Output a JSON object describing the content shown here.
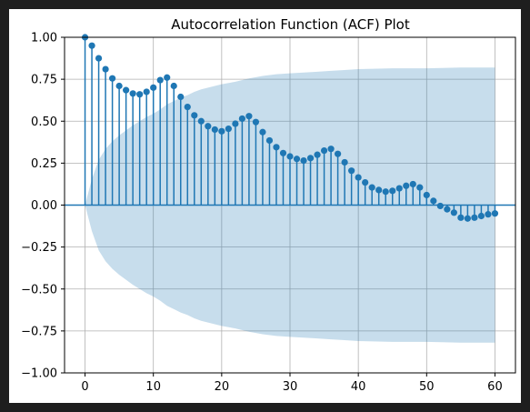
{
  "chart_data": {
    "type": "stem",
    "title": "Autocorrelation Function (ACF) Plot",
    "xlabel": "",
    "ylabel": "",
    "xlim": [
      -3,
      63
    ],
    "ylim": [
      -1.0,
      1.0
    ],
    "x_ticks": [
      0,
      10,
      20,
      30,
      40,
      50,
      60
    ],
    "y_ticks": [
      -1.0,
      -0.75,
      -0.5,
      -0.25,
      0.0,
      0.25,
      0.5,
      0.75,
      1.0
    ],
    "x_tick_labels": [
      "0",
      "10",
      "20",
      "30",
      "40",
      "50",
      "60"
    ],
    "y_tick_labels": [
      "−1.00",
      "−0.75",
      "−0.50",
      "−0.25",
      "0.00",
      "0.25",
      "0.50",
      "0.75",
      "1.00"
    ],
    "grid": true,
    "colors": {
      "stem": "#1f77b4",
      "marker": "#1f77b4",
      "band": "#1f77b4",
      "band_opacity": 0.25,
      "baseline": "#1f77b4",
      "grid": "#b0b0b0"
    },
    "series": [
      {
        "lags": [
          0,
          1,
          2,
          3,
          4,
          5,
          6,
          7,
          8,
          9,
          10,
          11,
          12,
          13,
          14,
          15,
          16,
          17,
          18,
          19,
          20,
          21,
          22,
          23,
          24,
          25,
          26,
          27,
          28,
          29,
          30,
          31,
          32,
          33,
          34,
          35,
          36,
          37,
          38,
          39,
          40,
          41,
          42,
          43,
          44,
          45,
          46,
          47,
          48,
          49,
          50,
          51,
          52,
          53,
          54,
          55,
          56,
          57,
          58,
          59,
          60
        ],
        "values": [
          1.0,
          0.95,
          0.875,
          0.81,
          0.755,
          0.71,
          0.685,
          0.665,
          0.66,
          0.675,
          0.7,
          0.745,
          0.76,
          0.71,
          0.645,
          0.585,
          0.535,
          0.5,
          0.47,
          0.45,
          0.44,
          0.455,
          0.485,
          0.515,
          0.53,
          0.495,
          0.435,
          0.385,
          0.345,
          0.31,
          0.29,
          0.275,
          0.265,
          0.28,
          0.3,
          0.325,
          0.335,
          0.305,
          0.255,
          0.205,
          0.165,
          0.135,
          0.105,
          0.09,
          0.08,
          0.085,
          0.1,
          0.115,
          0.125,
          0.105,
          0.06,
          0.025,
          -0.005,
          -0.025,
          -0.045,
          -0.075,
          -0.08,
          -0.075,
          -0.065,
          -0.055,
          -0.05
        ]
      }
    ],
    "confidence_band": {
      "lags": [
        0,
        1,
        2,
        3,
        4,
        5,
        6,
        7,
        8,
        9,
        10,
        11,
        12,
        13,
        14,
        15,
        16,
        17,
        18,
        19,
        20,
        22,
        24,
        26,
        28,
        30,
        32,
        34,
        36,
        38,
        40,
        45,
        50,
        55,
        60
      ],
      "upper": [
        0.0,
        0.155,
        0.27,
        0.335,
        0.38,
        0.415,
        0.445,
        0.475,
        0.5,
        0.525,
        0.545,
        0.57,
        0.6,
        0.62,
        0.64,
        0.655,
        0.675,
        0.69,
        0.7,
        0.71,
        0.72,
        0.735,
        0.755,
        0.77,
        0.78,
        0.785,
        0.79,
        0.795,
        0.8,
        0.805,
        0.81,
        0.815,
        0.815,
        0.82,
        0.82
      ]
    }
  }
}
